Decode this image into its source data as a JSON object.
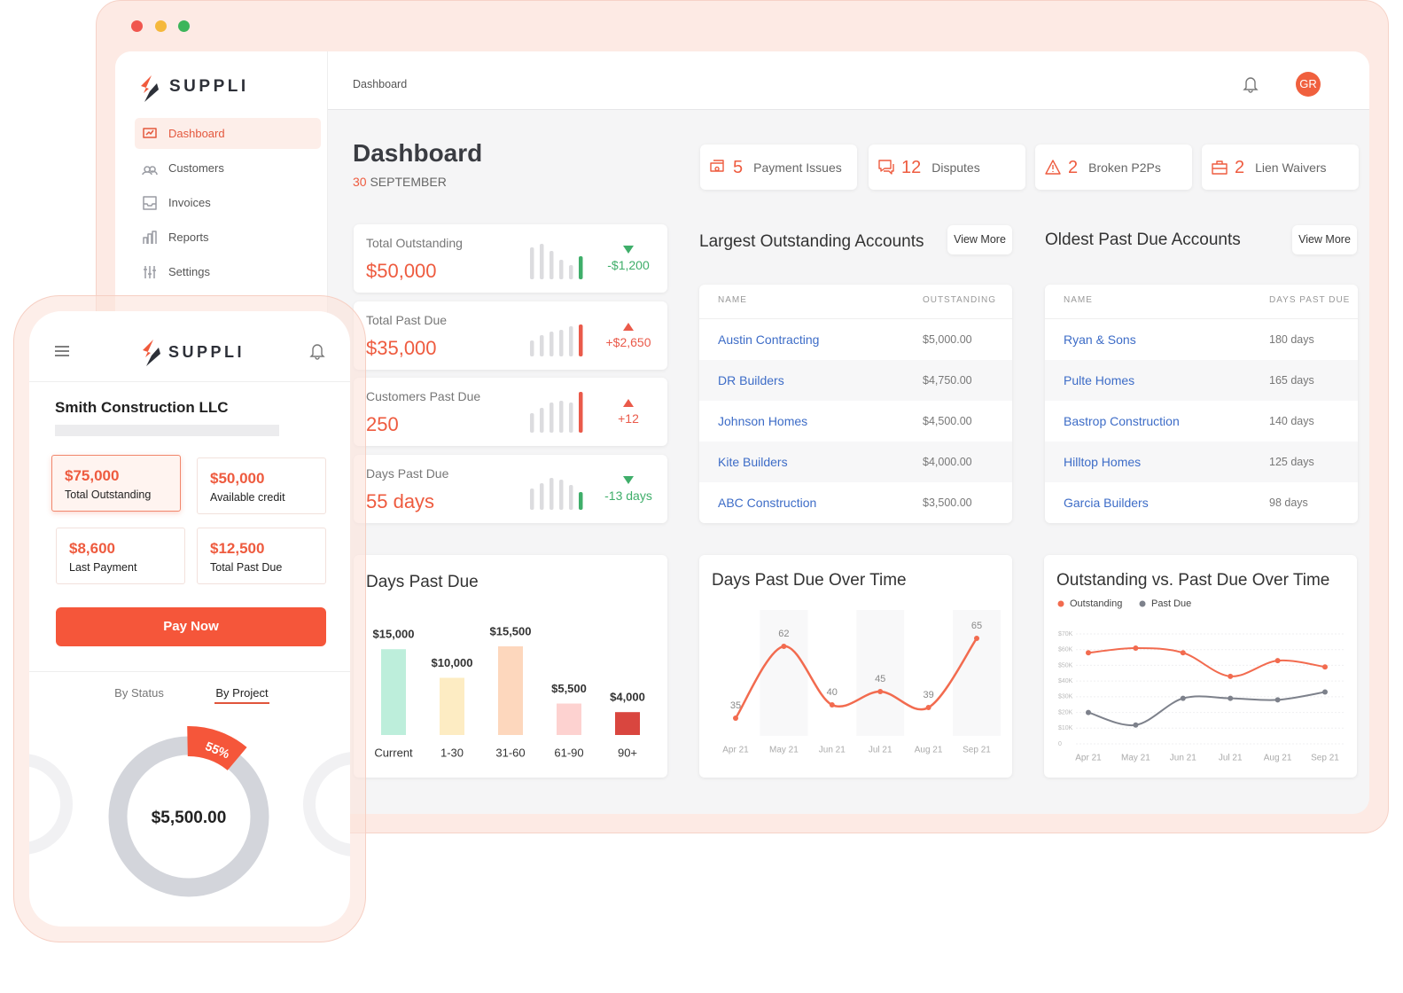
{
  "brand": "SUPPLI",
  "nav": [
    "Dashboard",
    "Customers",
    "Invoices",
    "Reports",
    "Settings"
  ],
  "breadcrumb": "Dashboard",
  "avatar": "GR",
  "page": {
    "title": "Dashboard",
    "date_day": "30",
    "date_month": "SEPTEMBER"
  },
  "issues": [
    {
      "count": "5",
      "label": "Payment Issues"
    },
    {
      "count": "12",
      "label": "Disputes"
    },
    {
      "count": "2",
      "label": "Broken P2Ps"
    },
    {
      "count": "2",
      "label": "Lien Waivers"
    }
  ],
  "kpis": [
    {
      "label": "Total Outstanding",
      "value": "$50,000",
      "change": "-$1,200",
      "trend": "down"
    },
    {
      "label": "Total Past Due",
      "value": "$35,000",
      "change": "+$2,650",
      "trend": "up"
    },
    {
      "label": "Customers Past Due",
      "value": "250",
      "change": "+12",
      "trend": "up"
    },
    {
      "label": "Days Past Due",
      "value": "55 days",
      "change": "-13 days",
      "trend": "down"
    }
  ],
  "largest": {
    "title": "Largest Outstanding Accounts",
    "action": "View More",
    "columns": [
      "NAME",
      "OUTSTANDING"
    ],
    "rows": [
      [
        "Austin Contracting",
        "$5,000.00"
      ],
      [
        "DR Builders",
        "$4,750.00"
      ],
      [
        "Johnson Homes",
        "$4,500.00"
      ],
      [
        "Kite Builders",
        "$4,000.00"
      ],
      [
        "ABC Construction",
        "$3,500.00"
      ]
    ]
  },
  "oldest": {
    "title": "Oldest Past Due Accounts",
    "action": "View More",
    "columns": [
      "NAME",
      "DAYS PAST DUE"
    ],
    "rows": [
      [
        "Ryan & Sons",
        "180 days"
      ],
      [
        "Pulte Homes",
        "165 days"
      ],
      [
        "Bastrop Construction",
        "140 days"
      ],
      [
        "Hilltop Homes",
        "125 days"
      ],
      [
        "Garcia Builders",
        "98 days"
      ]
    ]
  },
  "charts": [
    {
      "type": "bar",
      "title": "Days Past Due",
      "categories": [
        "Current",
        "1-30",
        "31-60",
        "61-90",
        "90+"
      ],
      "values": [
        15000,
        10000,
        15500,
        5500,
        4000
      ],
      "value_labels": [
        "$15,000",
        "$10,000",
        "$15,500",
        "$5,500",
        "$4,000"
      ],
      "colors": [
        "#bdeedb",
        "#fdecc3",
        "#fdd7bd",
        "#fdd2d0",
        "#d9463f"
      ]
    },
    {
      "type": "line",
      "title": "Days Past Due Over Time",
      "categories": [
        "Apr 21",
        "May 21",
        "Jun 21",
        "Jul 21",
        "Aug 21",
        "Sep 21"
      ],
      "values": [
        35,
        62,
        40,
        45,
        39,
        65
      ],
      "color": "#f26b4f"
    },
    {
      "type": "line",
      "title": "Outstanding vs. Past Due Over Time",
      "categories": [
        "Apr 21",
        "May 21",
        "Jun 21",
        "Jul 21",
        "Aug 21",
        "Sep 21"
      ],
      "series": [
        {
          "name": "Outstanding",
          "color": "#f26b4f",
          "values": [
            58000,
            61000,
            58000,
            43000,
            53000,
            49000
          ]
        },
        {
          "name": "Past Due",
          "color": "#7d818b",
          "values": [
            20000,
            12000,
            29000,
            29000,
            28000,
            33000
          ]
        }
      ],
      "ylim": [
        0,
        70000
      ],
      "yticks": [
        0,
        {
          "value": 10000,
          "label": "$10K"
        },
        {
          "value": 20000,
          "label": "$20K"
        },
        {
          "value": 30000,
          "label": "$30K"
        },
        {
          "value": 40000,
          "label": "$40K"
        },
        {
          "value": 50000,
          "label": "$50K"
        },
        {
          "value": 60000,
          "label": "$60K"
        },
        {
          "value": 70000,
          "label": "$70K"
        }
      ],
      "grid": true
    }
  ],
  "mobile": {
    "company": "Smith Construction LLC",
    "tiles": [
      {
        "value": "$75,000",
        "label": "Total Outstanding"
      },
      {
        "value": "$50,000",
        "label": "Available credit"
      },
      {
        "value": "$8,600",
        "label": "Last Payment"
      },
      {
        "value": "$12,500",
        "label": "Total Past Due"
      }
    ],
    "cta": "Pay Now",
    "tabs": [
      "By Status",
      "By Project"
    ],
    "active_tab": 1,
    "donut": {
      "badge": "55%",
      "total": "$5,500.00"
    }
  }
}
